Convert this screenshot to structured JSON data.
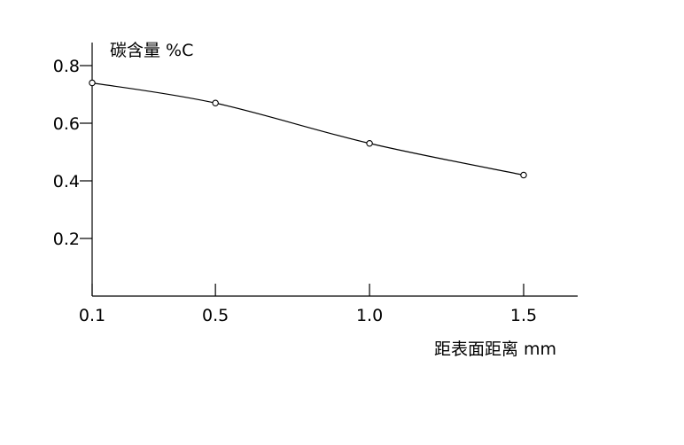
{
  "chart_data": {
    "type": "line",
    "ylabel": "碳含量 %C",
    "xlabel": "距表面距离 mm",
    "x": [
      0.1,
      0.5,
      1.0,
      1.5
    ],
    "x_tick_labels": [
      "0.1",
      "0.5",
      "1.0",
      "1.5"
    ],
    "y_tick_labels": [
      "0.2",
      "0.4",
      "0.6",
      "0.8"
    ],
    "y_ticks": [
      0.2,
      0.4,
      0.6,
      0.8
    ],
    "xlim": [
      0.1,
      1.7
    ],
    "ylim": [
      0.0,
      0.88
    ],
    "grid": false,
    "series": [
      {
        "values": [
          0.74,
          0.67,
          0.53,
          0.42
        ],
        "marker": "open-circle",
        "color": "#000000"
      }
    ]
  }
}
